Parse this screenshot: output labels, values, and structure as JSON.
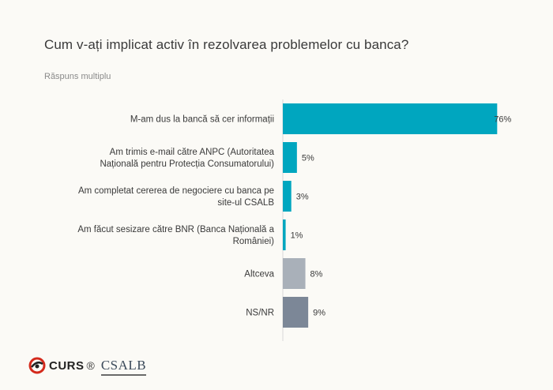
{
  "title": "Cum v-ați implicat activ în rezolvarea problemelor cu banca?",
  "subtitle": "Răspuns multiplu",
  "chart_data": {
    "type": "bar",
    "orientation": "horizontal",
    "categories": [
      [
        "M-am dus la bancă să cer informații"
      ],
      [
        "Am trimis e-mail către ANPC (Autoritatea",
        "Națională pentru Protecția Consumatorului)"
      ],
      [
        "Am completat cererea de negociere cu banca pe",
        "site-ul CSALB"
      ],
      [
        "Am făcut sesizare către BNR (Banca Națională a",
        "României)"
      ],
      [
        "Altceva"
      ],
      [
        "NS/NR"
      ]
    ],
    "values": [
      76,
      5,
      3,
      1,
      8,
      9
    ],
    "value_labels": [
      "76%",
      "5%",
      "3%",
      "1%",
      "8%",
      "9%"
    ],
    "colors": [
      "#00a6bf",
      "#00a6bf",
      "#00a6bf",
      "#00a6bf",
      "#a9b0b9",
      "#7c8797"
    ],
    "xlim": [
      0,
      100
    ],
    "grid": false,
    "legend": "none"
  },
  "footer": {
    "curs_logo_text": "CURS",
    "registered_mark": "®",
    "csalb_logo_text": "CSALB"
  }
}
